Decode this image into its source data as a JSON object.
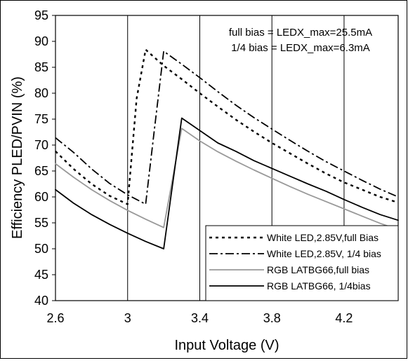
{
  "chart_data": {
    "type": "line",
    "xlabel": "Input Voltage (V)",
    "ylabel": "Efficiency PLED/PVIN (%)",
    "xlim": [
      2.6,
      4.5
    ],
    "ylim": [
      40,
      95
    ],
    "x_ticks": [
      "2.6",
      "3",
      "3.4",
      "3.8",
      "4.2"
    ],
    "y_ticks": [
      "40",
      "45",
      "50",
      "55",
      "60",
      "65",
      "70",
      "75",
      "80",
      "85",
      "90",
      "95"
    ],
    "grid": "vertical",
    "legend_position": "bottom-right",
    "annotations": [
      "full bias = LEDX_max=25.5mA",
      "1/4 bias = LEDX_max=6.3mA"
    ],
    "series": [
      {
        "name": "White LED,2.85V,full Bias",
        "color": "#000000",
        "dash": "dotted",
        "x": [
          2.6,
          2.7,
          2.8,
          2.9,
          3.0,
          3.05,
          3.1,
          3.2,
          3.3,
          3.4,
          3.5,
          3.6,
          3.7,
          3.8,
          3.9,
          4.0,
          4.1,
          4.2,
          4.3,
          4.4,
          4.5
        ],
        "y": [
          68.8,
          65.4,
          62.5,
          60.2,
          58.6,
          79.0,
          88.4,
          85.3,
          82.7,
          80.0,
          77.4,
          74.9,
          72.6,
          70.4,
          68.4,
          66.4,
          64.5,
          62.8,
          61.4,
          60.0,
          58.9
        ]
      },
      {
        "name": "White LED,2.85V, 1/4 bias",
        "color": "#000000",
        "dash": "dashdot",
        "x": [
          2.6,
          2.7,
          2.8,
          2.9,
          3.0,
          3.05,
          3.1,
          3.15,
          3.2,
          3.3,
          3.4,
          3.5,
          3.6,
          3.7,
          3.8,
          3.9,
          4.0,
          4.1,
          4.2,
          4.3,
          4.4,
          4.5
        ],
        "y": [
          71.4,
          68.6,
          65.4,
          62.6,
          60.4,
          59.5,
          58.6,
          73.5,
          88.1,
          85.6,
          83.0,
          80.3,
          77.7,
          75.3,
          73.1,
          70.9,
          68.8,
          66.8,
          65.0,
          63.2,
          61.5,
          60.0
        ]
      },
      {
        "name": "RGB LATBG66,full bias",
        "color": "#999999",
        "dash": "solid",
        "x": [
          2.6,
          2.7,
          2.8,
          2.9,
          3.0,
          3.1,
          3.2,
          3.3,
          3.4,
          3.5,
          3.6,
          3.7,
          3.8,
          3.9,
          4.0,
          4.1,
          4.2,
          4.3,
          4.4,
          4.5
        ],
        "y": [
          66.4,
          63.8,
          61.4,
          59.3,
          57.4,
          55.7,
          54.1,
          73.2,
          70.8,
          68.7,
          66.9,
          65.2,
          63.6,
          62.0,
          60.5,
          59.1,
          57.7,
          56.3,
          54.9,
          53.7
        ]
      },
      {
        "name": "RGB LATBG66, 1/4bias",
        "color": "#000000",
        "dash": "solid",
        "x": [
          2.6,
          2.7,
          2.8,
          2.9,
          3.0,
          3.1,
          3.2,
          3.3,
          3.4,
          3.5,
          3.6,
          3.7,
          3.8,
          3.9,
          4.0,
          4.1,
          4.2,
          4.3,
          4.4,
          4.5
        ],
        "y": [
          61.4,
          58.8,
          56.6,
          54.7,
          53.0,
          51.4,
          50.0,
          75.2,
          72.8,
          70.4,
          68.8,
          67.0,
          65.5,
          64.0,
          62.5,
          61.1,
          59.5,
          58.0,
          56.6,
          55.5
        ]
      }
    ]
  }
}
